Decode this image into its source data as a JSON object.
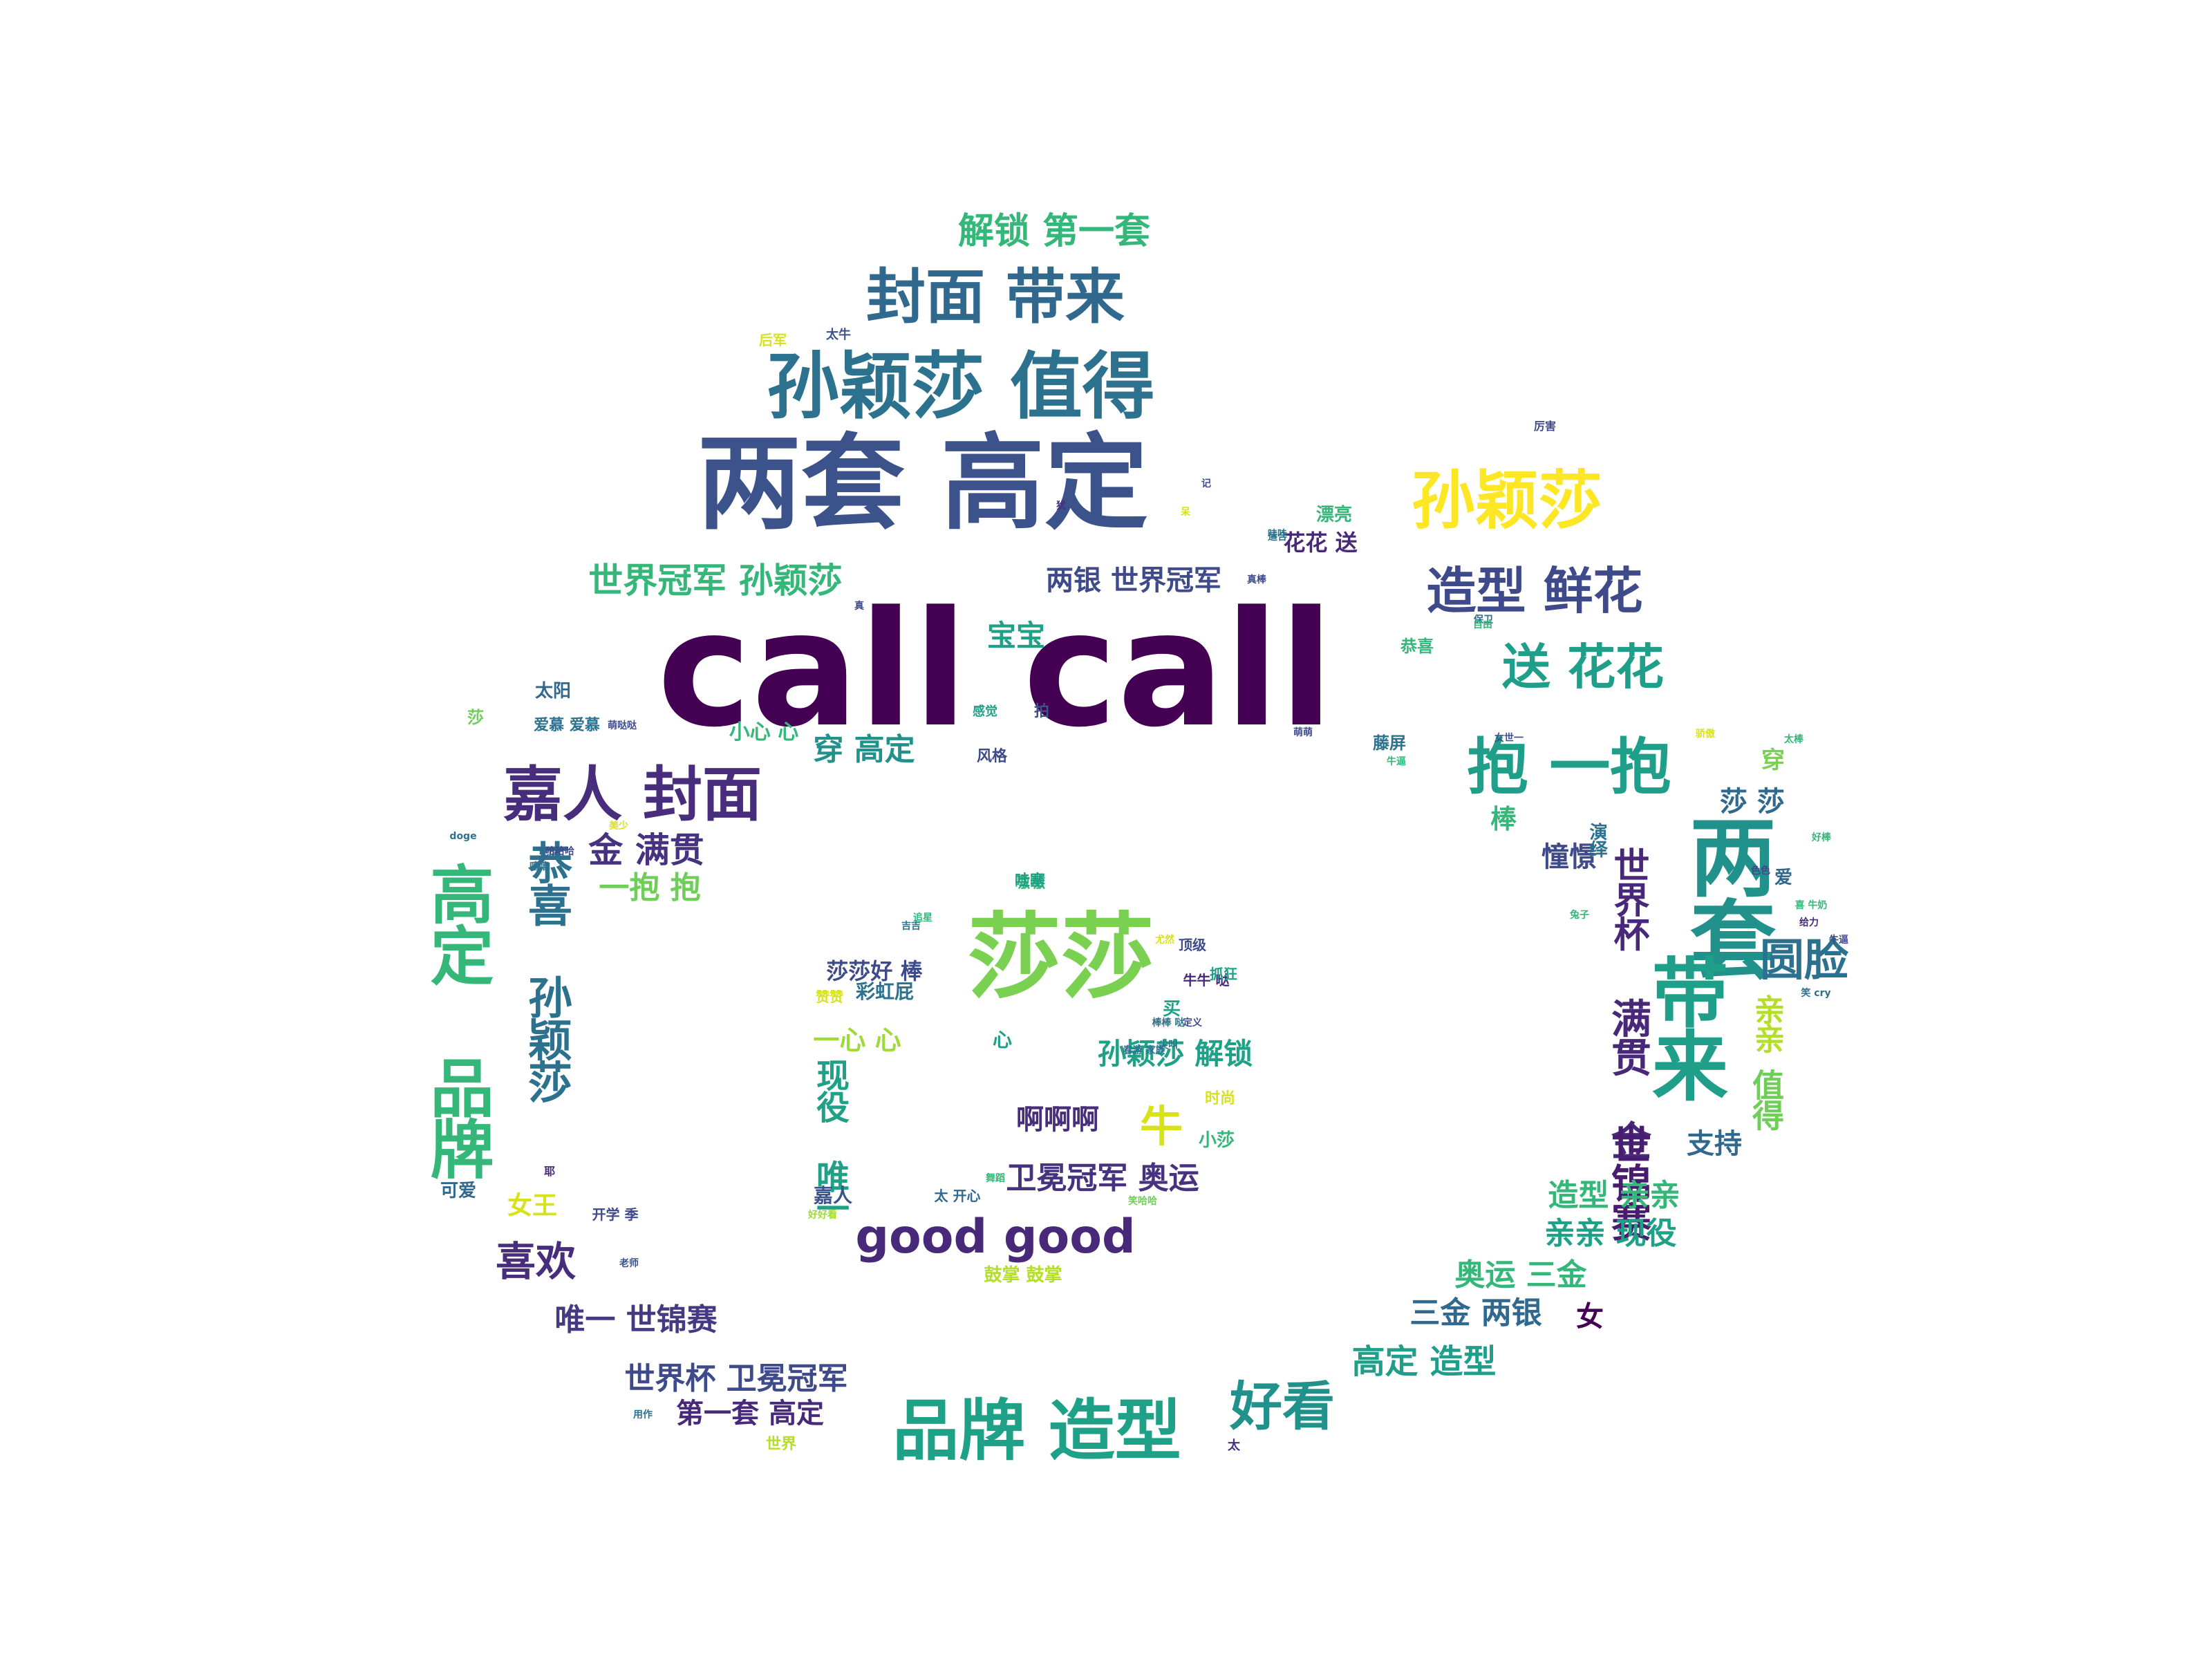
{
  "words": [
    {
      "text": "call call",
      "color": "#440154"
    },
    {
      "text": "两套 高定",
      "color": "#3b528b"
    },
    {
      "text": "孙颖莎 值得",
      "color": "#2c728e"
    },
    {
      "text": "封面 带来",
      "color": "#31688e"
    },
    {
      "text": "解锁 第一套",
      "color": "#35b779"
    },
    {
      "text": "孙颖莎",
      "color": "#fde725"
    },
    {
      "text": "造型 鲜花",
      "color": "#3e4a89"
    },
    {
      "text": "送 花花",
      "color": "#1f9e89"
    },
    {
      "text": "抱 一抱",
      "color": "#1f9e89"
    },
    {
      "text": "嘉人 封面",
      "color": "#472d7b"
    },
    {
      "text": "世界冠军 孙颖莎",
      "color": "#35b779"
    },
    {
      "text": "两银 世界冠军",
      "color": "#3e4a89"
    },
    {
      "text": "莎莎",
      "color": "#7ad151"
    },
    {
      "text": "高定 品牌",
      "color": "#35b779"
    },
    {
      "text": "恭喜 孙颖莎",
      "color": "#2c728e"
    },
    {
      "text": "金 满贯",
      "color": "#46327e"
    },
    {
      "text": "一抱 抱",
      "color": "#6ece58"
    },
    {
      "text": "穿 高定",
      "color": "#21918c"
    },
    {
      "text": "宝宝",
      "color": "#1fa187"
    },
    {
      "text": "小心 心",
      "color": "#35b779"
    },
    {
      "text": "两套",
      "color": "#21918c"
    },
    {
      "text": "带来",
      "color": "#1f9e89"
    },
    {
      "text": "世界杯",
      "color": "#482878"
    },
    {
      "text": "满贯 金",
      "color": "#482878"
    },
    {
      "text": "世锦赛",
      "color": "#481c6e"
    },
    {
      "text": "圆脸",
      "color": "#2c728e"
    },
    {
      "text": "莎 莎",
      "color": "#31688e"
    },
    {
      "text": "亲亲",
      "color": "#b5de2b"
    },
    {
      "text": "值得",
      "color": "#6ece58"
    },
    {
      "text": "穿",
      "color": "#7ad151"
    },
    {
      "text": "棒",
      "color": "#35b779"
    },
    {
      "text": "憧憬",
      "color": "#3e4a89"
    },
    {
      "text": "演绎",
      "color": "#2c728e"
    },
    {
      "text": "支持",
      "color": "#31688e"
    },
    {
      "text": "造型 亲亲",
      "color": "#35b779"
    },
    {
      "text": "亲亲 现役",
      "color": "#1fa187"
    },
    {
      "text": "奥运 三金",
      "color": "#35b779"
    },
    {
      "text": "三金 两银",
      "color": "#31688e"
    },
    {
      "text": "女",
      "color": "#440154"
    },
    {
      "text": "高定 造型",
      "color": "#1f9e89"
    },
    {
      "text": "好看",
      "color": "#21918c"
    },
    {
      "text": "品牌 造型",
      "color": "#1fa187"
    },
    {
      "text": "第一套 高定",
      "color": "#482878"
    },
    {
      "text": "世界杯 卫冕冠军",
      "color": "#3e4a89"
    },
    {
      "text": "唯一 世锦赛",
      "color": "#443983"
    },
    {
      "text": "喜欢",
      "color": "#472d7b"
    },
    {
      "text": "女王",
      "color": "#d8e219"
    },
    {
      "text": "可爱",
      "color": "#31688e"
    },
    {
      "text": "good good",
      "color": "#482878"
    },
    {
      "text": "卫冕冠军 奥运",
      "color": "#46327e"
    },
    {
      "text": "啊啊啊",
      "color": "#472d7b"
    },
    {
      "text": "牛",
      "color": "#d8e219"
    },
    {
      "text": "孙颖莎 解锁",
      "color": "#1fa187"
    },
    {
      "text": "莎莎好 棒",
      "color": "#3e4a89"
    },
    {
      "text": "彩虹屁",
      "color": "#2c728e"
    },
    {
      "text": "一心 心",
      "color": "#a0da39"
    },
    {
      "text": "现役 唯一",
      "color": "#1fa187"
    },
    {
      "text": "嘉人",
      "color": "#3b528b"
    },
    {
      "text": "小莎",
      "color": "#35b779"
    },
    {
      "text": "鼓掌 鼓掌",
      "color": "#b5de2b"
    },
    {
      "text": "花花 送",
      "color": "#482878"
    },
    {
      "text": "漂亮",
      "color": "#35b779"
    },
    {
      "text": "太阳",
      "color": "#31688e"
    },
    {
      "text": "爱慕 爱慕",
      "color": "#2c728e"
    },
    {
      "text": "风格",
      "color": "#3e4a89"
    },
    {
      "text": "心",
      "color": "#1f9e89"
    },
    {
      "text": "世界",
      "color": "#b5de2b"
    },
    {
      "text": "开学 季",
      "color": "#3e4a89"
    },
    {
      "text": "太",
      "color": "#46327e"
    },
    {
      "text": "嗷嗷",
      "color": "#35b779"
    },
    {
      "text": "恭喜",
      "color": "#35b779"
    },
    {
      "text": "牛牛 哒",
      "color": "#482878"
    },
    {
      "text": "时尚",
      "color": "#d8e219"
    },
    {
      "text": "顶级",
      "color": "#3e4a89"
    },
    {
      "text": "抓狂",
      "color": "#1fa187"
    },
    {
      "text": "赞赞",
      "color": "#d8e219"
    },
    {
      "text": "买",
      "color": "#1fa187"
    },
    {
      "text": "哇塞",
      "color": "#1fa187"
    },
    {
      "text": "爱",
      "color": "#31688e"
    },
    {
      "text": "太 开心",
      "color": "#31688e"
    },
    {
      "text": "后军",
      "color": "#d8e219"
    },
    {
      "text": "太牛",
      "color": "#3b528b"
    },
    {
      "text": "厉害",
      "color": "#3e4a89"
    },
    {
      "text": "doge",
      "color": "#2c728e"
    },
    {
      "text": "耶",
      "color": "#482878"
    },
    {
      "text": "笑哈哈",
      "color": "#6ece58"
    },
    {
      "text": "好好看",
      "color": "#a0da39"
    },
    {
      "text": "老师",
      "color": "#3b528b"
    },
    {
      "text": "用作",
      "color": "#2c728e"
    },
    {
      "text": "拍",
      "color": "#3b528b"
    },
    {
      "text": "感觉",
      "color": "#1fa187"
    },
    {
      "text": "美少",
      "color": "#d8e219"
    },
    {
      "text": "保卫",
      "color": "#31688e"
    },
    {
      "text": "自由",
      "color": "#35b779"
    },
    {
      "text": "真棒",
      "color": "#3e4a89"
    },
    {
      "text": "牛逼",
      "color": "#3e4a89"
    },
    {
      "text": "适合",
      "color": "#2c728e"
    },
    {
      "text": "喜 牛奶",
      "color": "#35b779"
    },
    {
      "text": "好棒",
      "color": "#35b779"
    },
    {
      "text": "给力",
      "color": "#472d7b"
    },
    {
      "text": "兔子",
      "color": "#35b779"
    },
    {
      "text": "笑 cry",
      "color": "#2c728e"
    },
    {
      "text": "春游 家族",
      "color": "#2c728e"
    },
    {
      "text": "萌萌",
      "color": "#3e4a89"
    },
    {
      "text": "太棒",
      "color": "#35b779"
    },
    {
      "text": "女世一",
      "color": "#3b528b"
    },
    {
      "text": "莎",
      "color": "#6ece58"
    },
    {
      "text": "萌哒哒",
      "color": "#3e4a89"
    },
    {
      "text": "牛逼",
      "color": "#35b779"
    },
    {
      "text": "定义",
      "color": "#3e4a89"
    },
    {
      "text": "棒棒 哒",
      "color": "#2c728e"
    },
    {
      "text": "藤屏",
      "color": "#2c728e"
    },
    {
      "text": "真",
      "color": "#3e4a89"
    },
    {
      "text": "哇哇",
      "color": "#2c728e"
    },
    {
      "text": "骄傲",
      "color": "#d8e219"
    },
    {
      "text": "色色",
      "color": "#3e4a89"
    },
    {
      "text": "吃瓜",
      "color": "#31688e"
    },
    {
      "text": "嘻嘻",
      "color": "#2c728e"
    },
    {
      "text": "哈哈哈",
      "color": "#3e4a89"
    },
    {
      "text": "追星",
      "color": "#35b779"
    },
    {
      "text": "尖叫",
      "color": "#2c728e"
    },
    {
      "text": "记",
      "color": "#3e4a89"
    },
    {
      "text": "呆",
      "color": "#d8e219"
    },
    {
      "text": "犹",
      "color": "#472d7b"
    },
    {
      "text": "尤然",
      "color": "#d8e219"
    },
    {
      "text": "舞蹈",
      "color": "#35b779"
    },
    {
      "text": "吉吉",
      "color": "#2c728e"
    }
  ]
}
